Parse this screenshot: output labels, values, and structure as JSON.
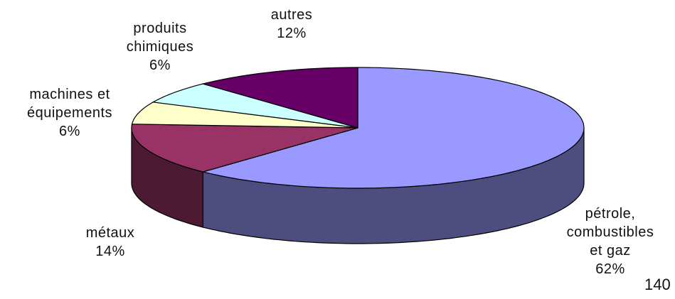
{
  "chart_data": {
    "type": "pie3d",
    "categories": [
      "pétrole,\ncombustibles\net gaz",
      "métaux",
      "machines et\néquipements",
      "produits\nchimiques",
      "autres"
    ],
    "values": [
      62,
      14,
      6,
      6,
      12
    ],
    "value_labels": [
      "62%",
      "14%",
      "6%",
      "6%",
      "12%"
    ],
    "colors": [
      "#9999ff",
      "#993366",
      "#ffffcc",
      "#ccffff",
      "#660066"
    ],
    "annotation": "140"
  }
}
